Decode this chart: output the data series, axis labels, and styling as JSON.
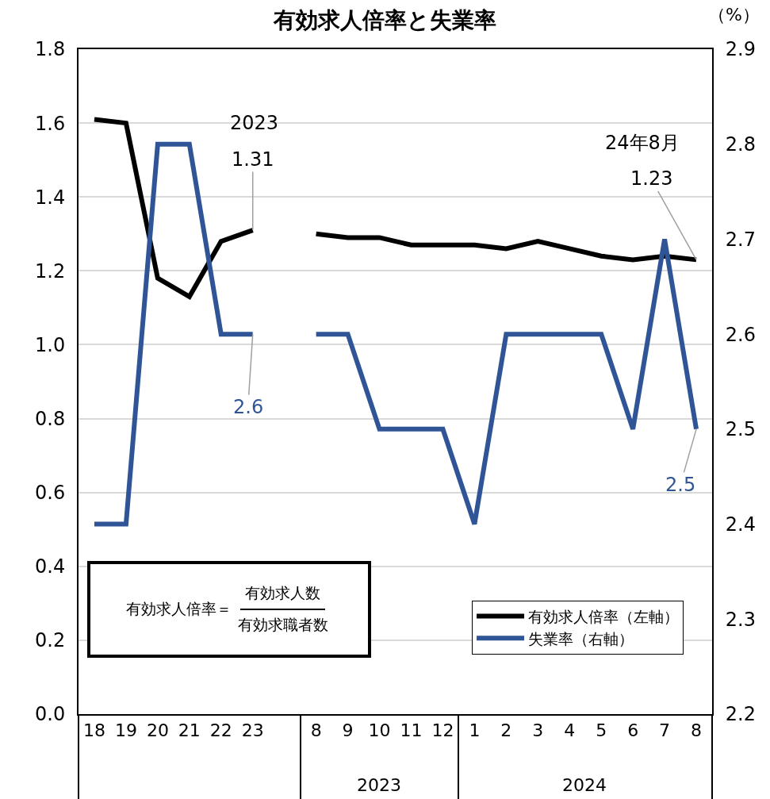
{
  "chart_data": {
    "type": "line",
    "title": "有効求人倍率と失業率",
    "y2label": "（%）",
    "categories": [
      "18",
      "19",
      "20",
      "21",
      "22",
      "23",
      null,
      "8",
      "9",
      "10",
      "11",
      "12",
      "1",
      "2",
      "3",
      "4",
      "5",
      "6",
      "7",
      "8"
    ],
    "series": [
      {
        "name": "有効求人倍率（左軸）",
        "color": "#000000",
        "values": [
          1.61,
          1.6,
          1.18,
          1.13,
          1.28,
          1.31,
          null,
          1.3,
          1.29,
          1.29,
          1.27,
          1.27,
          1.27,
          1.26,
          1.28,
          1.26,
          1.24,
          1.23,
          1.24,
          1.23
        ],
        "value_labels": [
          null,
          null,
          null,
          null,
          null,
          "1.31",
          null,
          null,
          null,
          null,
          null,
          null,
          null,
          null,
          null,
          null,
          null,
          null,
          null,
          "1.23"
        ]
      },
      {
        "name": "失業率（右軸）",
        "color": "#2f5597",
        "axis": "y2",
        "values": [
          2.4,
          2.4,
          2.8,
          2.8,
          2.6,
          2.6,
          null,
          2.6,
          2.6,
          2.5,
          2.5,
          2.5,
          2.4,
          2.6,
          2.6,
          2.6,
          2.6,
          2.5,
          2.7,
          2.5
        ],
        "value_labels": [
          null,
          null,
          null,
          null,
          null,
          "2.6",
          null,
          null,
          null,
          null,
          null,
          null,
          null,
          null,
          null,
          null,
          null,
          null,
          null,
          "2.5"
        ]
      }
    ],
    "ylim": [
      0,
      1.8
    ],
    "yticks": [
      {
        "value": 0,
        "label": "0.0"
      },
      0.2,
      0.4,
      0.6,
      0.8,
      {
        "value": 1,
        "label": "1.0"
      },
      1.2,
      1.4,
      1.6,
      1.8
    ],
    "y2lim": [
      2.2,
      2.9
    ],
    "y2ticks": [
      2.2,
      2.3,
      2.4,
      2.5,
      2.6,
      2.7,
      2.8,
      2.9
    ],
    "grid": "y",
    "legend": "bottom right",
    "marker": "none",
    "line_style": "solid",
    "annotations": [
      "有効求人倍率＝",
      "有効求人数",
      "有効求職者数",
      "2023",
      "24年8月",
      "2023",
      "2024"
    ]
  }
}
